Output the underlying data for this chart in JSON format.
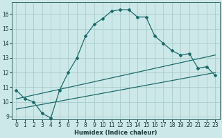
{
  "xlabel": "Humidex (Indice chaleur)",
  "background_color": "#cde8e8",
  "grid_color": "#aacccc",
  "line_color": "#1a6b6b",
  "xlim": [
    -0.5,
    23.5
  ],
  "ylim": [
    8.8,
    16.8
  ],
  "yticks": [
    9,
    10,
    11,
    12,
    13,
    14,
    15,
    16
  ],
  "xticks": [
    0,
    1,
    2,
    3,
    4,
    5,
    6,
    7,
    8,
    9,
    10,
    11,
    12,
    13,
    14,
    15,
    16,
    17,
    18,
    19,
    20,
    21,
    22,
    23
  ],
  "line1_x": [
    0,
    1,
    2,
    3,
    4,
    5,
    6,
    7,
    8,
    9,
    10,
    11,
    12,
    13,
    14,
    15,
    16,
    17,
    18,
    19,
    20,
    21,
    22,
    23
  ],
  "line1_y": [
    10.8,
    10.2,
    10.0,
    9.2,
    8.9,
    10.8,
    12.0,
    13.0,
    14.5,
    15.3,
    15.7,
    16.2,
    16.3,
    16.3,
    15.8,
    15.8,
    14.5,
    14.0,
    13.5,
    13.2,
    13.3,
    12.3,
    12.4,
    11.8
  ],
  "line2_x": [
    0,
    23
  ],
  "line2_y": [
    10.2,
    13.2
  ],
  "line3_x": [
    0,
    23
  ],
  "line3_y": [
    9.5,
    12.0
  ],
  "marker": "D",
  "markersize": 2.0,
  "linewidth": 0.9,
  "tick_labelsize": 5.5,
  "xlabel_fontsize": 6.0
}
